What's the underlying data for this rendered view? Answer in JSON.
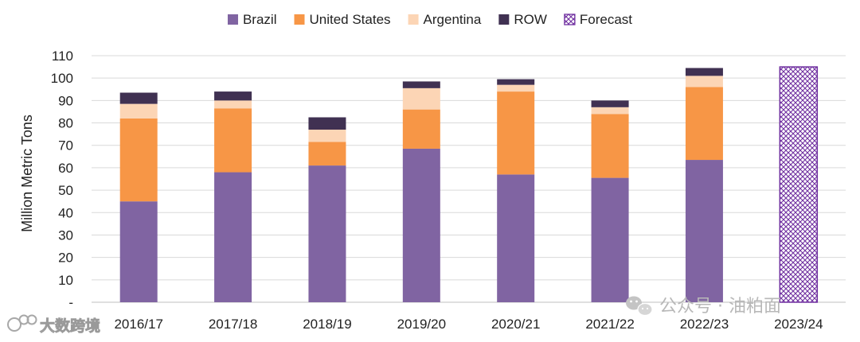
{
  "chart_data": {
    "type": "bar",
    "stacked": true,
    "title": "",
    "xlabel": "",
    "ylabel": "Million Metric Tons",
    "ylim": [
      0,
      110
    ],
    "yticks": [
      "-",
      "10",
      "20",
      "30",
      "40",
      "50",
      "60",
      "70",
      "80",
      "90",
      "100",
      "110"
    ],
    "grid": true,
    "legend_position": "top",
    "categories": [
      "2016/17",
      "2017/18",
      "2018/19",
      "2019/20",
      "2020/21",
      "2021/22",
      "2022/23",
      "2023/24"
    ],
    "series": [
      {
        "name": "Brazil",
        "color": "#8064a2",
        "values": [
          45,
          58,
          61,
          68.5,
          57,
          55.5,
          63.5,
          0
        ]
      },
      {
        "name": "United States",
        "color": "#f79646",
        "values": [
          37,
          28.5,
          10.5,
          17.5,
          37,
          28.5,
          32.5,
          0
        ]
      },
      {
        "name": "Argentina",
        "color": "#fcd5b5",
        "values": [
          6.5,
          3.5,
          5.5,
          9.5,
          3,
          3,
          5,
          0
        ]
      },
      {
        "name": "ROW",
        "color": "#403152",
        "values": [
          5,
          4,
          5.5,
          3,
          2.5,
          3,
          3.5,
          0
        ]
      },
      {
        "name": "Forecast",
        "color": "#7030a0",
        "pattern": "crosshatch",
        "values": [
          0,
          0,
          0,
          0,
          0,
          0,
          0,
          105
        ]
      }
    ]
  },
  "watermarks": {
    "right": "公众号 · 油粕面",
    "left": "大数跨境"
  },
  "icons": {
    "wechat": "wechat-icon",
    "logo": "brand-logo-icon"
  }
}
